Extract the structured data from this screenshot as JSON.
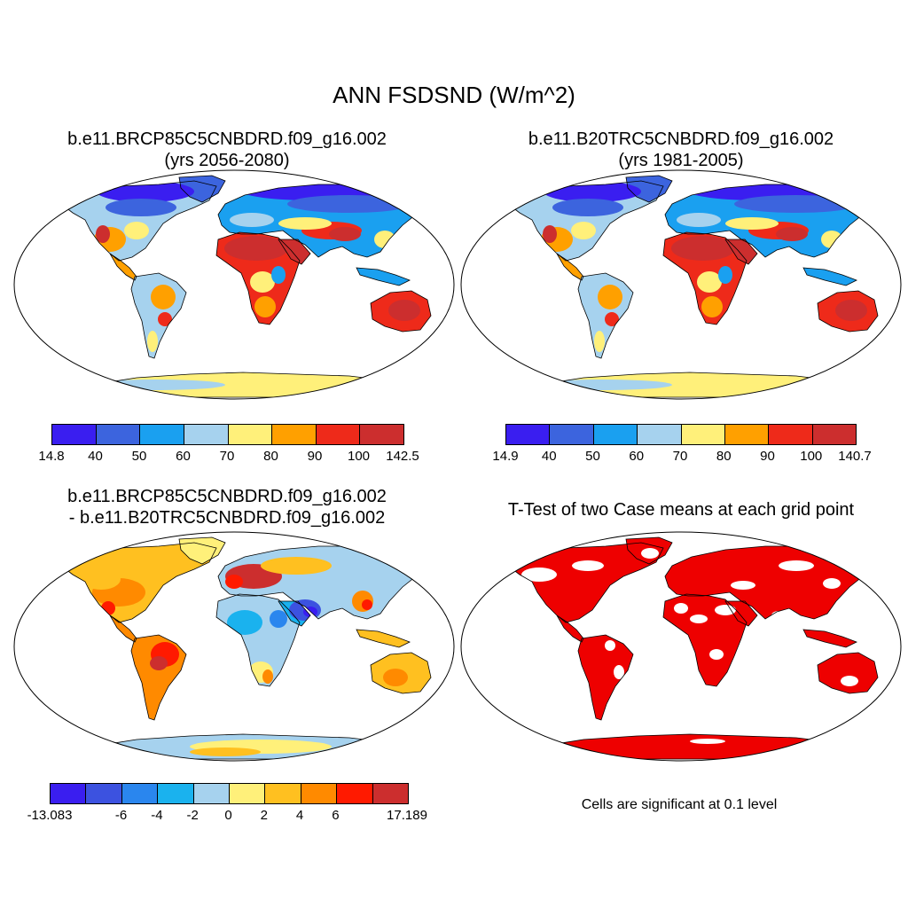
{
  "title": "ANN FSDSND (W/m^2)",
  "panels": [
    {
      "id": "case1",
      "title_line1": "b.e11.BRCP85C5CNBDRD.f09_g16.002",
      "title_line2": "(yrs 2056-2080)",
      "colorbar": {
        "colors": [
          "#3a1ef0",
          "#3c64de",
          "#1aa0f0",
          "#a6d2ee",
          "#fff07a",
          "#ffa000",
          "#ee2a1a",
          "#cc2e2e"
        ],
        "labels": [
          "14.8",
          "40",
          "50",
          "60",
          "70",
          "80",
          "90",
          "100",
          "142.5"
        ]
      }
    },
    {
      "id": "case2",
      "title_line1": "b.e11.B20TRC5CNBDRD.f09_g16.002",
      "title_line2": "(yrs 1981-2005)",
      "colorbar": {
        "colors": [
          "#3a1ef0",
          "#3c64de",
          "#1aa0f0",
          "#a6d2ee",
          "#fff07a",
          "#ffa000",
          "#ee2a1a",
          "#cc2e2e"
        ],
        "labels": [
          "14.9",
          "40",
          "50",
          "60",
          "70",
          "80",
          "90",
          "100",
          "140.7"
        ]
      }
    },
    {
      "id": "difference",
      "title_line1": "b.e11.BRCP85C5CNBDRD.f09_g16.002",
      "title_line2": "- b.e11.B20TRC5CNBDRD.f09_g16.002",
      "colorbar": {
        "colors": [
          "#3a1ef0",
          "#3c52e0",
          "#2a86ee",
          "#1ab2ee",
          "#a6d2ee",
          "#fff07a",
          "#ffc020",
          "#ff8a00",
          "#ff1a00",
          "#cc2e2e"
        ],
        "labels": [
          "-13.083",
          "",
          "-6",
          "-4",
          "-2",
          "0",
          "2",
          "4",
          "6",
          "",
          "17.189"
        ]
      }
    },
    {
      "id": "ttest",
      "title_line1": "T-Test of two Case means at each grid point",
      "note": "Cells are significant at 0.1 level",
      "fill_color": "#ee0000"
    }
  ]
}
